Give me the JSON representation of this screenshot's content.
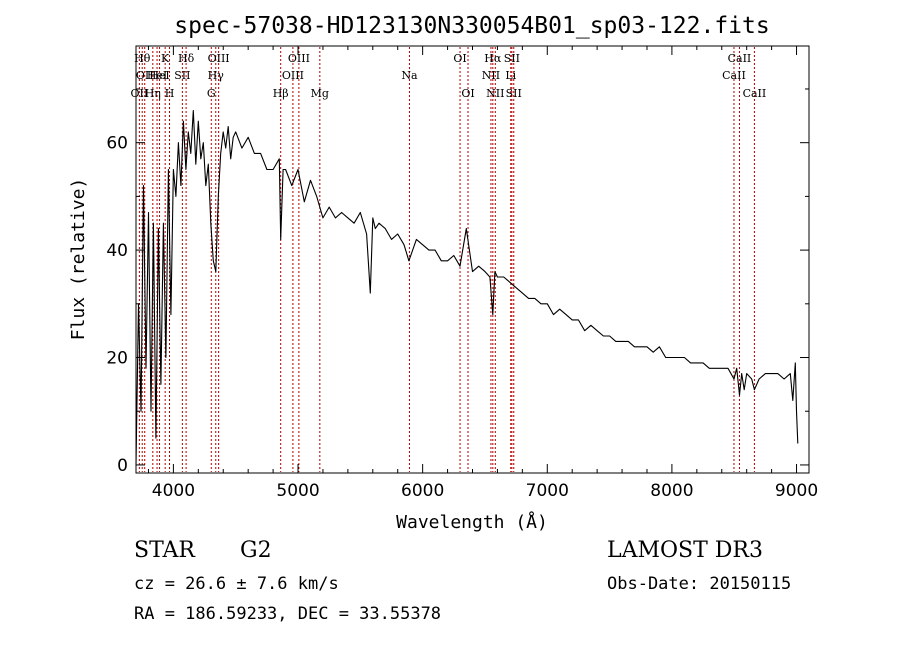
{
  "chart_data": {
    "type": "line",
    "title": "spec-57038-HD123130N330054B01_sp03-122.fits",
    "xlabel": "Wavelength (Å)",
    "ylabel": "Flux (relative)",
    "xlim": [
      3700,
      9100
    ],
    "ylim": [
      -1.5,
      78
    ],
    "xticks": [
      4000,
      5000,
      6000,
      7000,
      8000,
      9000
    ],
    "yticks": [
      0,
      20,
      40,
      60
    ],
    "grid": false,
    "series": [
      {
        "name": "flux",
        "x": [
          3700,
          3720,
          3740,
          3760,
          3780,
          3800,
          3820,
          3840,
          3860,
          3880,
          3900,
          3920,
          3940,
          3960,
          3980,
          4000,
          4020,
          4040,
          4060,
          4080,
          4100,
          4120,
          4140,
          4160,
          4180,
          4200,
          4220,
          4240,
          4260,
          4280,
          4300,
          4320,
          4340,
          4360,
          4380,
          4400,
          4420,
          4440,
          4460,
          4480,
          4500,
          4550,
          4600,
          4650,
          4700,
          4750,
          4800,
          4850,
          4861,
          4880,
          4900,
          4950,
          5000,
          5050,
          5100,
          5150,
          5200,
          5250,
          5300,
          5350,
          5400,
          5450,
          5500,
          5550,
          5580,
          5600,
          5620,
          5650,
          5700,
          5750,
          5800,
          5850,
          5890,
          5950,
          6000,
          6050,
          6100,
          6150,
          6200,
          6250,
          6300,
          6350,
          6400,
          6450,
          6500,
          6540,
          6563,
          6580,
          6600,
          6650,
          6700,
          6750,
          6800,
          6850,
          6900,
          6950,
          7000,
          7050,
          7100,
          7150,
          7200,
          7250,
          7300,
          7350,
          7400,
          7450,
          7500,
          7550,
          7600,
          7650,
          7700,
          7750,
          7800,
          7850,
          7900,
          7950,
          8000,
          8050,
          8100,
          8150,
          8200,
          8250,
          8300,
          8350,
          8400,
          8450,
          8498,
          8520,
          8542,
          8560,
          8580,
          8600,
          8640,
          8662,
          8700,
          8750,
          8800,
          8850,
          8900,
          8950,
          8970,
          8990,
          9000,
          9010
        ],
        "y": [
          0,
          30,
          10,
          52,
          18,
          47,
          10,
          45,
          5,
          44,
          15,
          45,
          20,
          55,
          28,
          55,
          50,
          60,
          52,
          64,
          55,
          62,
          58,
          66,
          56,
          64,
          57,
          60,
          52,
          56,
          45,
          38,
          36,
          50,
          58,
          62,
          59,
          63,
          57,
          61,
          62,
          59,
          61,
          58,
          58,
          55,
          55,
          57,
          42,
          55,
          55,
          52,
          55,
          49,
          53,
          50,
          46,
          48,
          46,
          47,
          46,
          45,
          47,
          43,
          32,
          46,
          44,
          45,
          44,
          42,
          43,
          41,
          38,
          42,
          41,
          40,
          40,
          38,
          38,
          39,
          37,
          44,
          36,
          37,
          36,
          35,
          28,
          36,
          35,
          35,
          34,
          33,
          32,
          31,
          31,
          30,
          30,
          28,
          29,
          28,
          27,
          27,
          25,
          26,
          25,
          24,
          24,
          23,
          23,
          23,
          22,
          22,
          22,
          21,
          22,
          20,
          20,
          20,
          20,
          19,
          19,
          19,
          18,
          18,
          18,
          18,
          16,
          18,
          13,
          17,
          14,
          17,
          16,
          14,
          16,
          17,
          17,
          17,
          16,
          17,
          12,
          19,
          10,
          4
        ]
      }
    ],
    "lines": [
      {
        "wave": 3727,
        "label": "OII",
        "row": 2
      },
      {
        "wave": 3750,
        "label": "Hθ",
        "row": 0
      },
      {
        "wave": 3770,
        "label": "OII",
        "row": 1
      },
      {
        "wave": 3835,
        "label": "Hη",
        "row": 2
      },
      {
        "wave": 3869,
        "label": "HeI",
        "row": 1
      },
      {
        "wave": 3889,
        "label": "HeI",
        "row": 1
      },
      {
        "wave": 3934,
        "label": "K",
        "row": 0
      },
      {
        "wave": 3969,
        "label": "H",
        "row": 2
      },
      {
        "wave": 4072,
        "label": "SII",
        "row": 1
      },
      {
        "wave": 4102,
        "label": "Hδ",
        "row": 0
      },
      {
        "wave": 4304,
        "label": "G",
        "row": 2
      },
      {
        "wave": 4340,
        "label": "Hγ",
        "row": 1
      },
      {
        "wave": 4363,
        "label": "OIII",
        "row": 0
      },
      {
        "wave": 4861,
        "label": "Hβ",
        "row": 2
      },
      {
        "wave": 4959,
        "label": "OIII",
        "row": 1
      },
      {
        "wave": 5007,
        "label": "OIII",
        "row": 0
      },
      {
        "wave": 5175,
        "label": "Mg",
        "row": 2
      },
      {
        "wave": 5894,
        "label": "Na",
        "row": 1
      },
      {
        "wave": 6300,
        "label": "OI",
        "row": 0
      },
      {
        "wave": 6364,
        "label": "OI",
        "row": 2
      },
      {
        "wave": 6548,
        "label": "NII",
        "row": 1
      },
      {
        "wave": 6563,
        "label": "Hα",
        "row": 0
      },
      {
        "wave": 6583,
        "label": "NII",
        "row": 2
      },
      {
        "wave": 6707,
        "label": "Li",
        "row": 1
      },
      {
        "wave": 6716,
        "label": "SII",
        "row": 0
      },
      {
        "wave": 6731,
        "label": "SII",
        "row": 2
      },
      {
        "wave": 8498,
        "label": "CaII",
        "row": 1
      },
      {
        "wave": 8542,
        "label": "CaII",
        "row": 0
      },
      {
        "wave": 8662,
        "label": "CaII",
        "row": 2
      }
    ]
  },
  "info": {
    "class": "STAR",
    "subclass": "G2",
    "cz": "cz = 26.6 ± 7.6 km/s",
    "radec": "RA = 186.59233, DEC =  33.55378",
    "survey": "LAMOST DR3",
    "obs_date": "Obs-Date: 20150115"
  },
  "colors": {
    "axis": "#000000",
    "line_marker": "#b00000",
    "spectrum": "#000000"
  }
}
